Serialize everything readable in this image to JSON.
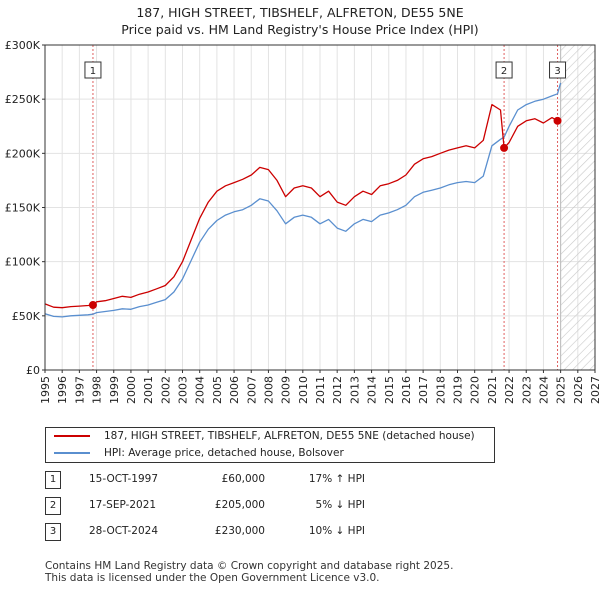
{
  "title": {
    "line1": "187, HIGH STREET, TIBSHELF, ALFRETON, DE55 5NE",
    "line2": "Price paid vs. HM Land Registry's House Price Index (HPI)"
  },
  "chart_data": {
    "type": "line",
    "title": "187, HIGH STREET, TIBSHELF, ALFRETON, DE55 5NE — Price paid vs. HM Land Registry's House Price Index (HPI)",
    "xlim": [
      1995,
      2027
    ],
    "ylim": [
      0,
      300000
    ],
    "x_ticks": [
      "1995",
      "1996",
      "1997",
      "1998",
      "1999",
      "2000",
      "2001",
      "2002",
      "2003",
      "2004",
      "2005",
      "2006",
      "2007",
      "2008",
      "2009",
      "2010",
      "2011",
      "2012",
      "2013",
      "2014",
      "2015",
      "2016",
      "2017",
      "2018",
      "2019",
      "2020",
      "2021",
      "2022",
      "2023",
      "2024",
      "2025",
      "2026",
      "2027"
    ],
    "y_ticks": [
      {
        "value": 0,
        "label": "£0"
      },
      {
        "value": 50000,
        "label": "£50K"
      },
      {
        "value": 100000,
        "label": "£100K"
      },
      {
        "value": 150000,
        "label": "£150K"
      },
      {
        "value": 200000,
        "label": "£200K"
      },
      {
        "value": 250000,
        "label": "£250K"
      },
      {
        "value": 300000,
        "label": "£300K"
      }
    ],
    "grid": true,
    "future_hatch_from": 2025.0,
    "series": [
      {
        "name": "187, HIGH STREET, TIBSHELF, ALFRETON, DE55 5NE (detached house)",
        "color": "#cc0000",
        "points": [
          [
            1995.0,
            61000
          ],
          [
            1995.5,
            58000
          ],
          [
            1996.0,
            57500
          ],
          [
            1996.5,
            58500
          ],
          [
            1997.0,
            59000
          ],
          [
            1997.5,
            59500
          ],
          [
            1997.79,
            60000
          ],
          [
            1998.0,
            63000
          ],
          [
            1998.5,
            64000
          ],
          [
            1999.0,
            66000
          ],
          [
            1999.5,
            68000
          ],
          [
            2000.0,
            67000
          ],
          [
            2000.5,
            70000
          ],
          [
            2001.0,
            72000
          ],
          [
            2001.5,
            75000
          ],
          [
            2002.0,
            78000
          ],
          [
            2002.5,
            86000
          ],
          [
            2003.0,
            100000
          ],
          [
            2003.5,
            120000
          ],
          [
            2004.0,
            140000
          ],
          [
            2004.5,
            155000
          ],
          [
            2005.0,
            165000
          ],
          [
            2005.5,
            170000
          ],
          [
            2006.0,
            173000
          ],
          [
            2006.5,
            176000
          ],
          [
            2007.0,
            180000
          ],
          [
            2007.5,
            187000
          ],
          [
            2008.0,
            185000
          ],
          [
            2008.5,
            175000
          ],
          [
            2009.0,
            160000
          ],
          [
            2009.5,
            168000
          ],
          [
            2010.0,
            170000
          ],
          [
            2010.5,
            168000
          ],
          [
            2011.0,
            160000
          ],
          [
            2011.5,
            165000
          ],
          [
            2012.0,
            155000
          ],
          [
            2012.5,
            152000
          ],
          [
            2013.0,
            160000
          ],
          [
            2013.5,
            165000
          ],
          [
            2014.0,
            162000
          ],
          [
            2014.5,
            170000
          ],
          [
            2015.0,
            172000
          ],
          [
            2015.5,
            175000
          ],
          [
            2016.0,
            180000
          ],
          [
            2016.5,
            190000
          ],
          [
            2017.0,
            195000
          ],
          [
            2017.5,
            197000
          ],
          [
            2018.0,
            200000
          ],
          [
            2018.5,
            203000
          ],
          [
            2019.0,
            205000
          ],
          [
            2019.5,
            207000
          ],
          [
            2020.0,
            205000
          ],
          [
            2020.5,
            212000
          ],
          [
            2021.0,
            245000
          ],
          [
            2021.5,
            240000
          ],
          [
            2021.71,
            205000
          ],
          [
            2022.0,
            210000
          ],
          [
            2022.5,
            225000
          ],
          [
            2023.0,
            230000
          ],
          [
            2023.5,
            232000
          ],
          [
            2024.0,
            228000
          ],
          [
            2024.5,
            233000
          ],
          [
            2024.82,
            230000
          ],
          [
            2025.0,
            232000
          ]
        ]
      },
      {
        "name": "HPI: Average price, detached house, Bolsover",
        "color": "#5a8fcf",
        "points": [
          [
            1995.0,
            52000
          ],
          [
            1995.5,
            49500
          ],
          [
            1996.0,
            49000
          ],
          [
            1996.5,
            50000
          ],
          [
            1997.0,
            50500
          ],
          [
            1997.5,
            51000
          ],
          [
            1997.79,
            51500
          ],
          [
            1998.0,
            53000
          ],
          [
            1998.5,
            54000
          ],
          [
            1999.0,
            55000
          ],
          [
            1999.5,
            56500
          ],
          [
            2000.0,
            56000
          ],
          [
            2000.5,
            58500
          ],
          [
            2001.0,
            60000
          ],
          [
            2001.5,
            62500
          ],
          [
            2002.0,
            65000
          ],
          [
            2002.5,
            72000
          ],
          [
            2003.0,
            84000
          ],
          [
            2003.5,
            101000
          ],
          [
            2004.0,
            118000
          ],
          [
            2004.5,
            130000
          ],
          [
            2005.0,
            138000
          ],
          [
            2005.5,
            143000
          ],
          [
            2006.0,
            146000
          ],
          [
            2006.5,
            148000
          ],
          [
            2007.0,
            152000
          ],
          [
            2007.5,
            158000
          ],
          [
            2008.0,
            156000
          ],
          [
            2008.5,
            147000
          ],
          [
            2009.0,
            135000
          ],
          [
            2009.5,
            141000
          ],
          [
            2010.0,
            143000
          ],
          [
            2010.5,
            141000
          ],
          [
            2011.0,
            135000
          ],
          [
            2011.5,
            139000
          ],
          [
            2012.0,
            131000
          ],
          [
            2012.5,
            128000
          ],
          [
            2013.0,
            135000
          ],
          [
            2013.5,
            139000
          ],
          [
            2014.0,
            137000
          ],
          [
            2014.5,
            143000
          ],
          [
            2015.0,
            145000
          ],
          [
            2015.5,
            148000
          ],
          [
            2016.0,
            152000
          ],
          [
            2016.5,
            160000
          ],
          [
            2017.0,
            164000
          ],
          [
            2017.5,
            166000
          ],
          [
            2018.0,
            168000
          ],
          [
            2018.5,
            171000
          ],
          [
            2019.0,
            173000
          ],
          [
            2019.5,
            174000
          ],
          [
            2020.0,
            173000
          ],
          [
            2020.5,
            179000
          ],
          [
            2021.0,
            207000
          ],
          [
            2021.5,
            213000
          ],
          [
            2021.71,
            215000
          ],
          [
            2022.0,
            225000
          ],
          [
            2022.5,
            240000
          ],
          [
            2023.0,
            245000
          ],
          [
            2023.5,
            248000
          ],
          [
            2024.0,
            250000
          ],
          [
            2024.5,
            253000
          ],
          [
            2024.82,
            255000
          ],
          [
            2025.0,
            265000
          ]
        ]
      }
    ],
    "sales": [
      {
        "marker": "1",
        "x": 1997.79,
        "price": 60000
      },
      {
        "marker": "2",
        "x": 2021.71,
        "price": 205000
      },
      {
        "marker": "3",
        "x": 2024.82,
        "price": 230000
      }
    ]
  },
  "legend": {
    "red_label": "187, HIGH STREET, TIBSHELF, ALFRETON, DE55 5NE (detached house)",
    "blue_label": "HPI: Average price, detached house, Bolsover"
  },
  "sales_table": [
    {
      "marker": "1",
      "date": "15-OCT-1997",
      "price": "£60,000",
      "hpi": "17% ↑ HPI"
    },
    {
      "marker": "2",
      "date": "17-SEP-2021",
      "price": "£205,000",
      "hpi": "5% ↓ HPI"
    },
    {
      "marker": "3",
      "date": "28-OCT-2024",
      "price": "£230,000",
      "hpi": "10% ↓ HPI"
    }
  ],
  "footer": {
    "line1": "Contains HM Land Registry data © Crown copyright and database right 2025.",
    "line2": "This data is licensed under the Open Government Licence v3.0."
  }
}
